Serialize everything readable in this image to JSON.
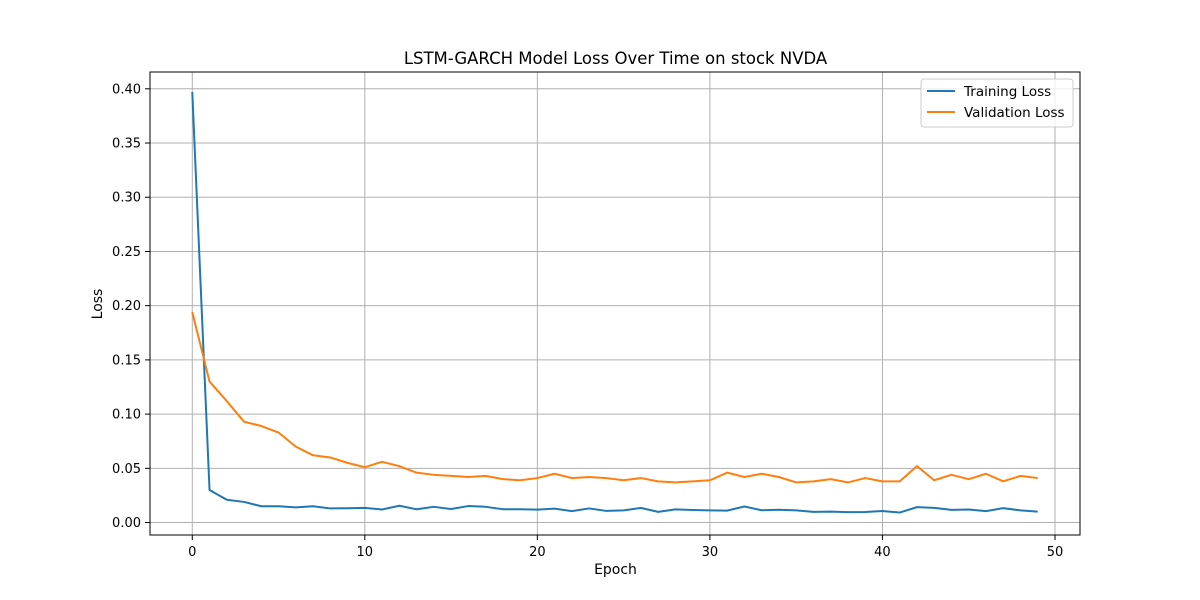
{
  "chart_data": {
    "type": "line",
    "title": "LSTM-GARCH Model Loss Over Time on stock NVDA",
    "xlabel": "Epoch",
    "ylabel": "Loss",
    "xlim": [
      -2.45,
      51.45
    ],
    "ylim": [
      -0.0115,
      0.4155
    ],
    "xticks": [
      0,
      10,
      20,
      30,
      40,
      50
    ],
    "xtick_labels": [
      "0",
      "10",
      "20",
      "30",
      "40",
      "50"
    ],
    "yticks": [
      0.0,
      0.05,
      0.1,
      0.15,
      0.2,
      0.25,
      0.3,
      0.35,
      0.4
    ],
    "ytick_labels": [
      "0.00",
      "0.05",
      "0.10",
      "0.15",
      "0.20",
      "0.25",
      "0.30",
      "0.35",
      "0.40"
    ],
    "grid": true,
    "legend_position": "top-right",
    "x": [
      0,
      1,
      2,
      3,
      4,
      5,
      6,
      7,
      8,
      9,
      10,
      11,
      12,
      13,
      14,
      15,
      16,
      17,
      18,
      19,
      20,
      21,
      22,
      23,
      24,
      25,
      26,
      27,
      28,
      29,
      30,
      31,
      32,
      33,
      34,
      35,
      36,
      37,
      38,
      39,
      40,
      41,
      42,
      43,
      44,
      45,
      46,
      47,
      48,
      49
    ],
    "series": [
      {
        "name": "Training Loss",
        "color": "#1f77b4",
        "values": [
          0.397,
          0.03,
          0.021,
          0.019,
          0.015,
          0.015,
          0.014,
          0.015,
          0.013,
          0.0132,
          0.0135,
          0.012,
          0.0155,
          0.0122,
          0.0145,
          0.0125,
          0.0152,
          0.0145,
          0.0123,
          0.0123,
          0.0119,
          0.0128,
          0.0105,
          0.013,
          0.0107,
          0.0112,
          0.0135,
          0.0098,
          0.0121,
          0.0115,
          0.0112,
          0.011,
          0.0148,
          0.0113,
          0.0118,
          0.0112,
          0.0098,
          0.0101,
          0.0096,
          0.0097,
          0.0106,
          0.0092,
          0.0142,
          0.0135,
          0.0117,
          0.012,
          0.0105,
          0.0133,
          0.0112,
          0.0101
        ]
      },
      {
        "name": "Validation Loss",
        "color": "#ff7f0e",
        "values": [
          0.194,
          0.13,
          0.112,
          0.093,
          0.089,
          0.083,
          0.07,
          0.062,
          0.06,
          0.055,
          0.051,
          0.056,
          0.052,
          0.046,
          0.044,
          0.043,
          0.042,
          0.043,
          0.04,
          0.039,
          0.041,
          0.045,
          0.041,
          0.042,
          0.041,
          0.039,
          0.041,
          0.038,
          0.037,
          0.038,
          0.039,
          0.046,
          0.042,
          0.045,
          0.042,
          0.037,
          0.038,
          0.04,
          0.037,
          0.041,
          0.038,
          0.038,
          0.052,
          0.039,
          0.044,
          0.04,
          0.045,
          0.038,
          0.043,
          0.041
        ]
      }
    ]
  }
}
